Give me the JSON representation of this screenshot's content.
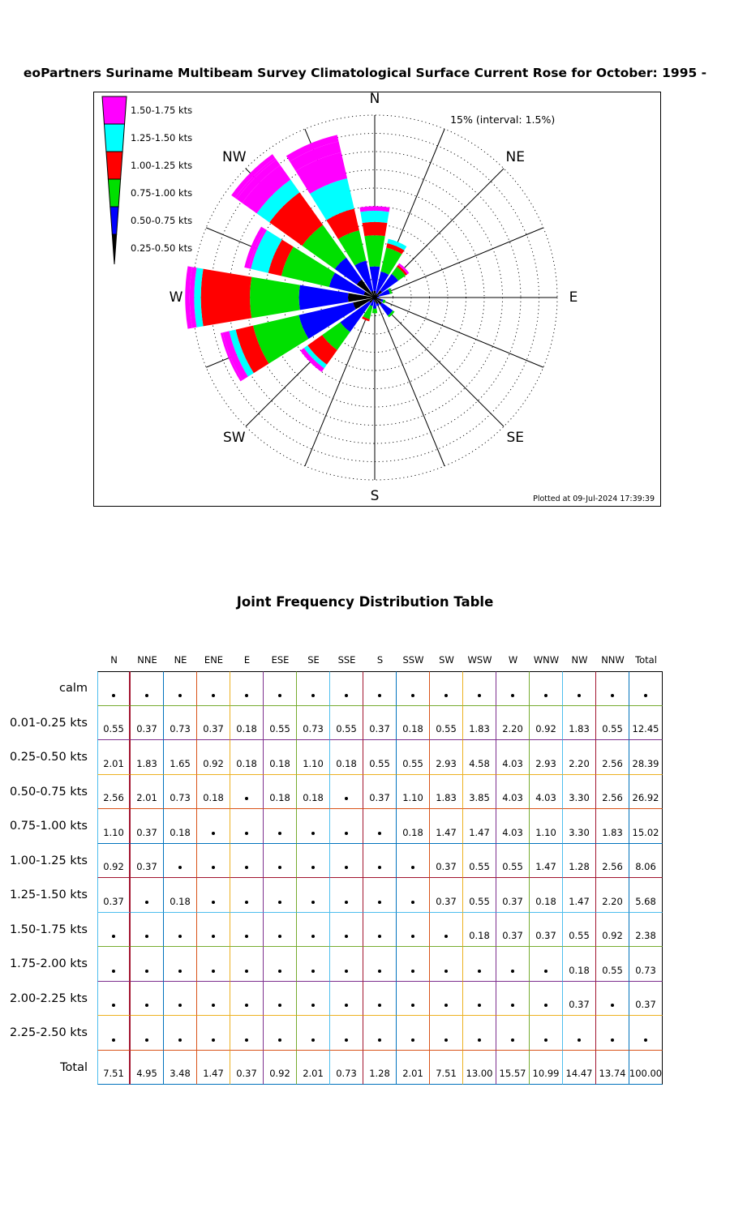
{
  "title": "eoPartners Suriname Multibeam Survey Climatological Surface Current Rose for October: 1995 -",
  "rose": {
    "annotation": "15% (interval: 1.5%)",
    "footer": "Plotted at 09-Jul-2024 17:39:39",
    "compass_labels": [
      {
        "label": "N",
        "angle": 0
      },
      {
        "label": "NE",
        "angle": 45
      },
      {
        "label": "E",
        "angle": 90
      },
      {
        "label": "SE",
        "angle": 135
      },
      {
        "label": "S",
        "angle": 180
      },
      {
        "label": "SW",
        "angle": 225
      },
      {
        "label": "W",
        "angle": 270
      },
      {
        "label": "NW",
        "angle": 315
      }
    ],
    "legend": [
      {
        "label": "1.50-1.75 kts",
        "color": "#FF00FF"
      },
      {
        "label": "1.25-1.50 kts",
        "color": "#00FFFF"
      },
      {
        "label": "1.00-1.25 kts",
        "color": "#FF0000"
      },
      {
        "label": "0.75-1.00 kts",
        "color": "#00E000"
      },
      {
        "label": "0.50-0.75 kts",
        "color": "#0000FF"
      },
      {
        "label": "0.25-0.50 kts",
        "color": "#000000"
      }
    ],
    "bin_colors": [
      "#000000",
      "#0000FF",
      "#00E000",
      "#FF0000",
      "#00FFFF",
      "#FF00FF",
      "#FF00FF",
      "#FF00FF",
      "#FF00FF",
      "#FF00FF"
    ]
  },
  "chart_data": {
    "type": "bar",
    "subtype": "polar-current-rose",
    "title": "eoPartners Suriname Multibeam Survey Climatological Surface Current Rose for October: 1995 -",
    "units_note": "petal length = % occurrence, rings every 1.5% up to 15%",
    "ring_interval_pct": 1.5,
    "ring_max_pct": 15,
    "categories": [
      "N",
      "NNE",
      "NE",
      "ENE",
      "E",
      "ESE",
      "SE",
      "SSE",
      "S",
      "SSW",
      "SW",
      "WSW",
      "W",
      "WNW",
      "NW",
      "NNW"
    ],
    "series": [
      {
        "name": "0.01-0.25 kts",
        "values": [
          0.55,
          0.37,
          0.73,
          0.37,
          0.18,
          0.55,
          0.73,
          0.55,
          0.37,
          0.18,
          0.55,
          1.83,
          2.2,
          0.92,
          1.83,
          0.55
        ]
      },
      {
        "name": "0.25-0.50 kts",
        "values": [
          2.01,
          1.83,
          1.65,
          0.92,
          0.18,
          0.18,
          1.1,
          0.18,
          0.55,
          0.55,
          2.93,
          4.58,
          4.03,
          2.93,
          2.2,
          2.56
        ]
      },
      {
        "name": "0.50-0.75 kts",
        "values": [
          2.56,
          2.01,
          0.73,
          0.18,
          0,
          0.18,
          0.18,
          0,
          0.37,
          1.1,
          1.83,
          3.85,
          4.03,
          4.03,
          3.3,
          2.56
        ]
      },
      {
        "name": "0.75-1.00 kts",
        "values": [
          1.1,
          0.37,
          0.18,
          0,
          0,
          0,
          0,
          0,
          0,
          0.18,
          1.47,
          1.47,
          4.03,
          1.1,
          3.3,
          1.83
        ]
      },
      {
        "name": "1.00-1.25 kts",
        "values": [
          0.92,
          0.37,
          0,
          0,
          0,
          0,
          0,
          0,
          0,
          0,
          0.37,
          0.55,
          0.55,
          1.47,
          1.28,
          2.56
        ]
      },
      {
        "name": "1.25-1.50 kts",
        "values": [
          0.37,
          0,
          0.18,
          0,
          0,
          0,
          0,
          0,
          0,
          0,
          0.37,
          0.55,
          0.37,
          0.18,
          1.47,
          2.2
        ]
      },
      {
        "name": "1.50-1.75 kts",
        "values": [
          0,
          0,
          0,
          0,
          0,
          0,
          0,
          0,
          0,
          0,
          0,
          0.18,
          0.37,
          0.37,
          0.55,
          0.92
        ]
      },
      {
        "name": "1.75-2.00 kts",
        "values": [
          0,
          0,
          0,
          0,
          0,
          0,
          0,
          0,
          0,
          0,
          0,
          0,
          0,
          0,
          0.18,
          0.55
        ]
      },
      {
        "name": "2.00-2.25 kts",
        "values": [
          0,
          0,
          0,
          0,
          0,
          0,
          0,
          0,
          0,
          0,
          0,
          0,
          0,
          0,
          0.37,
          0
        ]
      },
      {
        "name": "2.25-2.50 kts",
        "values": [
          0,
          0,
          0,
          0,
          0,
          0,
          0,
          0,
          0,
          0,
          0,
          0,
          0,
          0,
          0,
          0
        ]
      }
    ],
    "totals_by_direction": [
      7.51,
      4.95,
      3.48,
      1.47,
      0.37,
      0.92,
      2.01,
      0.73,
      1.28,
      2.01,
      7.51,
      13.0,
      15.57,
      10.99,
      14.47,
      13.74
    ],
    "grand_total": 100.0
  },
  "table": {
    "title": "Joint Frequency Distribution Table",
    "columns": [
      "N",
      "NNE",
      "NE",
      "ENE",
      "E",
      "ESE",
      "SE",
      "SSE",
      "S",
      "SSW",
      "SW",
      "WSW",
      "W",
      "WNW",
      "NW",
      "NNW",
      "Total"
    ],
    "rows": [
      {
        "label": "calm",
        "values": [
          "•",
          "•",
          "•",
          "•",
          "•",
          "•",
          "•",
          "•",
          "•",
          "•",
          "•",
          "•",
          "•",
          "•",
          "•",
          "•",
          "•"
        ]
      },
      {
        "label": "0.01-0.25 kts",
        "values": [
          "0.55",
          "0.37",
          "0.73",
          "0.37",
          "0.18",
          "0.55",
          "0.73",
          "0.55",
          "0.37",
          "0.18",
          "0.55",
          "1.83",
          "2.20",
          "0.92",
          "1.83",
          "0.55",
          "12.45"
        ]
      },
      {
        "label": "0.25-0.50 kts",
        "values": [
          "2.01",
          "1.83",
          "1.65",
          "0.92",
          "0.18",
          "0.18",
          "1.10",
          "0.18",
          "0.55",
          "0.55",
          "2.93",
          "4.58",
          "4.03",
          "2.93",
          "2.20",
          "2.56",
          "28.39"
        ]
      },
      {
        "label": "0.50-0.75 kts",
        "values": [
          "2.56",
          "2.01",
          "0.73",
          "0.18",
          "•",
          "0.18",
          "0.18",
          "•",
          "0.37",
          "1.10",
          "1.83",
          "3.85",
          "4.03",
          "4.03",
          "3.30",
          "2.56",
          "26.92"
        ]
      },
      {
        "label": "0.75-1.00 kts",
        "values": [
          "1.10",
          "0.37",
          "0.18",
          "•",
          "•",
          "•",
          "•",
          "•",
          "•",
          "0.18",
          "1.47",
          "1.47",
          "4.03",
          "1.10",
          "3.30",
          "1.83",
          "15.02"
        ]
      },
      {
        "label": "1.00-1.25 kts",
        "values": [
          "0.92",
          "0.37",
          "•",
          "•",
          "•",
          "•",
          "•",
          "•",
          "•",
          "•",
          "0.37",
          "0.55",
          "0.55",
          "1.47",
          "1.28",
          "2.56",
          "8.06"
        ]
      },
      {
        "label": "1.25-1.50 kts",
        "values": [
          "0.37",
          "•",
          "0.18",
          "•",
          "•",
          "•",
          "•",
          "•",
          "•",
          "•",
          "0.37",
          "0.55",
          "0.37",
          "0.18",
          "1.47",
          "2.20",
          "5.68"
        ]
      },
      {
        "label": "1.50-1.75 kts",
        "values": [
          "•",
          "•",
          "•",
          "•",
          "•",
          "•",
          "•",
          "•",
          "•",
          "•",
          "•",
          "0.18",
          "0.37",
          "0.37",
          "0.55",
          "0.92",
          "2.38"
        ]
      },
      {
        "label": "1.75-2.00 kts",
        "values": [
          "•",
          "•",
          "•",
          "•",
          "•",
          "•",
          "•",
          "•",
          "•",
          "•",
          "•",
          "•",
          "•",
          "•",
          "0.18",
          "0.55",
          "0.73"
        ]
      },
      {
        "label": "2.00-2.25 kts",
        "values": [
          "•",
          "•",
          "•",
          "•",
          "•",
          "•",
          "•",
          "•",
          "•",
          "•",
          "•",
          "•",
          "•",
          "•",
          "0.37",
          "•",
          "0.37"
        ]
      },
      {
        "label": "2.25-2.50 kts",
        "values": [
          "•",
          "•",
          "•",
          "•",
          "•",
          "•",
          "•",
          "•",
          "•",
          "•",
          "•",
          "•",
          "•",
          "•",
          "•",
          "•",
          "•"
        ]
      },
      {
        "label": "Total",
        "values": [
          "7.51",
          "4.95",
          "3.48",
          "1.47",
          "0.37",
          "0.92",
          "2.01",
          "0.73",
          "1.28",
          "2.01",
          "7.51",
          "13.00",
          "15.57",
          "10.99",
          "14.47",
          "13.74",
          "100.00"
        ]
      }
    ],
    "vline_colors": [
      "#4DBEEE",
      "#A2142F",
      "#0072BD",
      "#D95319",
      "#EDB120",
      "#7E2F8E",
      "#77AC30",
      "#4DBEEE",
      "#A2142F",
      "#0072BD",
      "#D95319",
      "#EDB120",
      "#7E2F8E",
      "#77AC30",
      "#4DBEEE",
      "#A2142F",
      "#0072BD",
      "#000000"
    ],
    "hline_colors": [
      "#000000",
      "#77AC30",
      "#7E2F8E",
      "#EDB120",
      "#D95319",
      "#0072BD",
      "#A2142F",
      "#4DBEEE",
      "#77AC30",
      "#7E2F8E",
      "#EDB120",
      "#D95319",
      "#0072BD"
    ]
  }
}
